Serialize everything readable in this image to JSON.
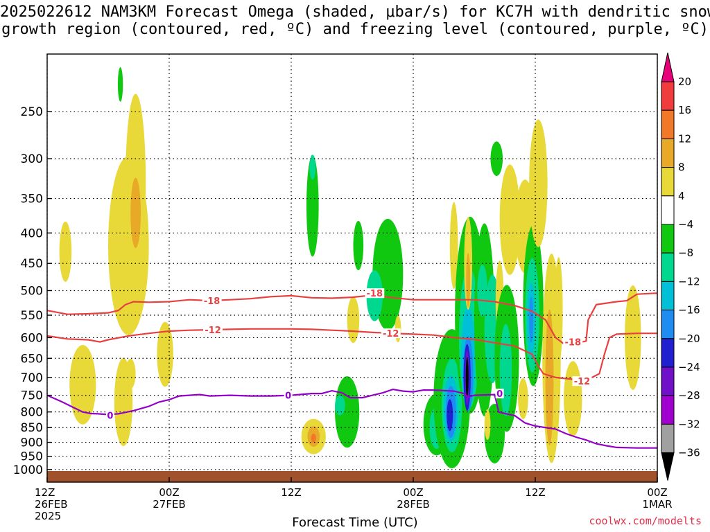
{
  "title_line1": "2025022612 NAM3KM Forecast Omega (shaded, μbar/s) for KC7H with dendritic snow",
  "title_line2": "growth region (contoured, red, ºC) and freezing level (contoured, purple, ºC)",
  "credit": "coolwx.com/modelts",
  "chart_data": {
    "type": "heatmap",
    "xlabel": "Forecast Time (UTC)",
    "x_range_hours": [
      0,
      60
    ],
    "x_ticks": [
      {
        "hour": 0,
        "lines": [
          "12Z",
          "26FEB",
          "2025"
        ]
      },
      {
        "hour": 12,
        "lines": [
          "00Z",
          "27FEB"
        ]
      },
      {
        "hour": 24,
        "lines": [
          "12Z"
        ]
      },
      {
        "hour": 36,
        "lines": [
          "00Z",
          "28FEB"
        ]
      },
      {
        "hour": 48,
        "lines": [
          "12Z"
        ]
      },
      {
        "hour": 60,
        "lines": [
          "00Z",
          "1MAR"
        ]
      }
    ],
    "y_axis": "pressure (hPa), log scale, reversed",
    "y_range": [
      1050,
      200
    ],
    "y_ticks": [
      250,
      300,
      350,
      400,
      450,
      500,
      550,
      600,
      650,
      700,
      750,
      800,
      850,
      900,
      950,
      1000
    ],
    "grid": true,
    "colorbar": {
      "labels": [
        "20",
        "16",
        "12",
        "8",
        "4",
        "−4",
        "−8",
        "−12",
        "−16",
        "−20",
        "−24",
        "−28",
        "−32",
        "−36"
      ],
      "colors": [
        "#e8007a",
        "#f03c3c",
        "#f07828",
        "#e8a828",
        "#e8d838",
        "#ffffff",
        "#10c810",
        "#00d890",
        "#00c0d8",
        "#1e8cf0",
        "#2020d0",
        "#7010c8",
        "#a000d0",
        "#a0a0a0",
        "#000000"
      ]
    },
    "omega_regions": [
      {
        "t": 8.7,
        "p": 330,
        "dt": 1.0,
        "dp": 110,
        "level": 4
      },
      {
        "t": 8.0,
        "p": 420,
        "dt": 2.0,
        "dp": 140,
        "level": 4
      },
      {
        "t": 8.7,
        "p": 370,
        "dt": 0.5,
        "dp": 50,
        "level": 8
      },
      {
        "t": 1.8,
        "p": 430,
        "dt": 0.6,
        "dp": 50,
        "level": 4
      },
      {
        "t": 3.5,
        "p": 720,
        "dt": 1.3,
        "dp": 110,
        "level": 4
      },
      {
        "t": 7.5,
        "p": 770,
        "dt": 0.9,
        "dp": 130,
        "level": 4
      },
      {
        "t": 8.2,
        "p": 690,
        "dt": 0.5,
        "dp": 40,
        "level": 4
      },
      {
        "t": 11.6,
        "p": 640,
        "dt": 0.8,
        "dp": 80,
        "level": 4
      },
      {
        "t": 7.2,
        "p": 225,
        "dt": 0.25,
        "dp": 15,
        "level": -4
      },
      {
        "t": 26.1,
        "p": 360,
        "dt": 0.6,
        "dp": 70,
        "level": -4
      },
      {
        "t": 26.1,
        "p": 310,
        "dt": 0.3,
        "dp": 15,
        "level": -8
      },
      {
        "t": 30.6,
        "p": 420,
        "dt": 0.5,
        "dp": 40,
        "level": -4
      },
      {
        "t": 33.5,
        "p": 470,
        "dt": 1.5,
        "dp": 100,
        "level": -4
      },
      {
        "t": 32.2,
        "p": 510,
        "dt": 0.8,
        "dp": 50,
        "level": -8
      },
      {
        "t": 30.1,
        "p": 560,
        "dt": 0.6,
        "dp": 50,
        "level": 4
      },
      {
        "t": 26.2,
        "p": 880,
        "dt": 1.2,
        "dp": 60,
        "level": 4
      },
      {
        "t": 26.2,
        "p": 880,
        "dt": 0.6,
        "dp": 35,
        "level": 8
      },
      {
        "t": 26.2,
        "p": 885,
        "dt": 0.25,
        "dp": 15,
        "level": 12
      },
      {
        "t": 29.5,
        "p": 800,
        "dt": 1.2,
        "dp": 110,
        "level": -4
      },
      {
        "t": 28.8,
        "p": 780,
        "dt": 0.5,
        "dp": 30,
        "level": -8
      },
      {
        "t": 34.5,
        "p": 580,
        "dt": 0.3,
        "dp": 30,
        "level": 4
      },
      {
        "t": 38.3,
        "p": 840,
        "dt": 1.3,
        "dp": 100,
        "level": -4
      },
      {
        "t": 38.3,
        "p": 850,
        "dt": 0.7,
        "dp": 70,
        "level": -8
      },
      {
        "t": 39.8,
        "p": 760,
        "dt": 1.8,
        "dp": 200,
        "level": -4
      },
      {
        "t": 39.8,
        "p": 780,
        "dt": 1.0,
        "dp": 140,
        "level": -8
      },
      {
        "t": 39.7,
        "p": 790,
        "dt": 0.7,
        "dp": 100,
        "level": -12
      },
      {
        "t": 39.7,
        "p": 800,
        "dt": 0.5,
        "dp": 80,
        "level": -16
      },
      {
        "t": 39.6,
        "p": 810,
        "dt": 0.3,
        "dp": 50,
        "level": -20
      },
      {
        "t": 40.0,
        "p": 420,
        "dt": 0.4,
        "dp": 70,
        "level": 4
      },
      {
        "t": 41.6,
        "p": 550,
        "dt": 1.5,
        "dp": 200,
        "level": -4
      },
      {
        "t": 41.5,
        "p": 600,
        "dt": 1.0,
        "dp": 160,
        "level": -8
      },
      {
        "t": 41.4,
        "p": 650,
        "dt": 0.7,
        "dp": 130,
        "level": -12
      },
      {
        "t": 41.4,
        "p": 690,
        "dt": 0.5,
        "dp": 100,
        "level": -16
      },
      {
        "t": 41.3,
        "p": 700,
        "dt": 0.35,
        "dp": 90,
        "level": -20
      },
      {
        "t": 41.3,
        "p": 700,
        "dt": 0.2,
        "dp": 75,
        "level": -24
      },
      {
        "t": 41.3,
        "p": 700,
        "dt": 0.1,
        "dp": 55,
        "level": -32
      },
      {
        "t": 41.4,
        "p": 450,
        "dt": 0.4,
        "dp": 80,
        "level": 4
      },
      {
        "t": 41.4,
        "p": 480,
        "dt": 0.2,
        "dp": 50,
        "level": 8
      },
      {
        "t": 43.0,
        "p": 560,
        "dt": 1.0,
        "dp": 200,
        "level": -4
      },
      {
        "t": 42.8,
        "p": 500,
        "dt": 0.5,
        "dp": 50,
        "level": -8
      },
      {
        "t": 43.8,
        "p": 580,
        "dt": 0.8,
        "dp": 120,
        "level": -8
      },
      {
        "t": 44.5,
        "p": 520,
        "dt": 0.4,
        "dp": 80,
        "level": 4
      },
      {
        "t": 44.2,
        "p": 300,
        "dt": 0.6,
        "dp": 20,
        "level": -4
      },
      {
        "t": 45.2,
        "p": 650,
        "dt": 1.2,
        "dp": 180,
        "level": -4
      },
      {
        "t": 45.1,
        "p": 680,
        "dt": 0.6,
        "dp": 120,
        "level": -8
      },
      {
        "t": 44.0,
        "p": 870,
        "dt": 1.0,
        "dp": 100,
        "level": -4
      },
      {
        "t": 43.3,
        "p": 840,
        "dt": 0.3,
        "dp": 50,
        "level": 4
      },
      {
        "t": 45.5,
        "p": 380,
        "dt": 1.0,
        "dp": 80,
        "level": 4
      },
      {
        "t": 46.8,
        "p": 760,
        "dt": 0.5,
        "dp": 60,
        "level": 4
      },
      {
        "t": 47.0,
        "p": 390,
        "dt": 1.0,
        "dp": 70,
        "level": 4
      },
      {
        "t": 47.8,
        "p": 530,
        "dt": 1.0,
        "dp": 160,
        "level": -4
      },
      {
        "t": 47.7,
        "p": 550,
        "dt": 0.7,
        "dp": 120,
        "level": -8
      },
      {
        "t": 47.6,
        "p": 560,
        "dt": 0.4,
        "dp": 80,
        "level": -12
      },
      {
        "t": 47.6,
        "p": 560,
        "dt": 0.2,
        "dp": 50,
        "level": -16
      },
      {
        "t": 48.3,
        "p": 330,
        "dt": 0.9,
        "dp": 80,
        "level": 4
      },
      {
        "t": 49.6,
        "p": 650,
        "dt": 0.9,
        "dp": 250,
        "level": 4
      },
      {
        "t": 49.4,
        "p": 700,
        "dt": 0.4,
        "dp": 180,
        "level": 8
      },
      {
        "t": 50.3,
        "p": 540,
        "dt": 0.4,
        "dp": 110,
        "level": 4
      },
      {
        "t": 51.7,
        "p": 760,
        "dt": 0.9,
        "dp": 110,
        "level": 4
      },
      {
        "t": 51.4,
        "p": 700,
        "dt": 0.3,
        "dp": 25,
        "level": 4
      },
      {
        "t": 57.6,
        "p": 600,
        "dt": 0.8,
        "dp": 120,
        "level": 4
      }
    ],
    "contours": [
      {
        "color": "#e84040",
        "labels": [
          {
            "t": 16.2,
            "p": 520,
            "text": "-18"
          },
          {
            "t": 32.2,
            "p": 505,
            "text": "-18"
          },
          {
            "t": 51.7,
            "p": 610,
            "text": "-18"
          }
        ],
        "points": [
          [
            0,
            540
          ],
          [
            2,
            548
          ],
          [
            4,
            547
          ],
          [
            6,
            545
          ],
          [
            7,
            540
          ],
          [
            7.7,
            528
          ],
          [
            8.5,
            522
          ],
          [
            10,
            523
          ],
          [
            12,
            522
          ],
          [
            14,
            518
          ],
          [
            16,
            520
          ],
          [
            18,
            518
          ],
          [
            20,
            516
          ],
          [
            22,
            512
          ],
          [
            24,
            510
          ],
          [
            26,
            514
          ],
          [
            28,
            515
          ],
          [
            30,
            513
          ],
          [
            32,
            509
          ],
          [
            34,
            514
          ],
          [
            36,
            518
          ],
          [
            38,
            518
          ],
          [
            40,
            518
          ],
          [
            42,
            518
          ],
          [
            44,
            522
          ],
          [
            46,
            530
          ],
          [
            47.7,
            542
          ],
          [
            49,
            560
          ],
          [
            50,
            600
          ],
          [
            51,
            618
          ],
          [
            53,
            608
          ],
          [
            53.2,
            560
          ],
          [
            54,
            528
          ],
          [
            56,
            522
          ],
          [
            57,
            520
          ],
          [
            58,
            507
          ],
          [
            60,
            505
          ]
        ]
      },
      {
        "color": "#e84040",
        "labels": [
          {
            "t": 16.3,
            "p": 582,
            "text": "-12"
          },
          {
            "t": 33.8,
            "p": 590,
            "text": "-12"
          },
          {
            "t": 52.6,
            "p": 710,
            "text": "-12"
          }
        ],
        "points": [
          [
            0,
            596
          ],
          [
            2,
            603
          ],
          [
            4,
            605
          ],
          [
            5.2,
            610
          ],
          [
            6,
            605
          ],
          [
            8,
            596
          ],
          [
            10,
            590
          ],
          [
            12,
            585
          ],
          [
            14,
            583
          ],
          [
            16,
            582
          ],
          [
            18,
            581
          ],
          [
            20,
            580
          ],
          [
            22,
            580
          ],
          [
            24,
            580
          ],
          [
            26,
            581
          ],
          [
            28,
            583
          ],
          [
            30,
            585
          ],
          [
            32,
            588
          ],
          [
            34,
            590
          ],
          [
            36,
            592
          ],
          [
            38,
            594
          ],
          [
            40,
            600
          ],
          [
            42,
            604
          ],
          [
            44,
            612
          ],
          [
            46,
            620
          ],
          [
            47.7,
            640
          ],
          [
            48.3,
            670
          ],
          [
            48.8,
            690
          ],
          [
            50,
            700
          ],
          [
            51,
            703
          ],
          [
            53,
            708
          ],
          [
            54.3,
            690
          ],
          [
            54.8,
            640
          ],
          [
            55.3,
            600
          ],
          [
            56,
            592
          ],
          [
            58,
            590
          ],
          [
            60,
            590
          ]
        ]
      },
      {
        "color": "#9400c8",
        "labels": [
          {
            "t": 6.2,
            "p": 810,
            "text": "0"
          },
          {
            "t": 23.7,
            "p": 750,
            "text": "0"
          },
          {
            "t": 44.5,
            "p": 745,
            "text": "0"
          }
        ],
        "points": [
          [
            0,
            750
          ],
          [
            1.5,
            770
          ],
          [
            2.5,
            785
          ],
          [
            3.5,
            800
          ],
          [
            4.3,
            805
          ],
          [
            5,
            806
          ],
          [
            6,
            808
          ],
          [
            7,
            806
          ],
          [
            8.5,
            796
          ],
          [
            10,
            783
          ],
          [
            11,
            770
          ],
          [
            12,
            763
          ],
          [
            13,
            752
          ],
          [
            14,
            750
          ],
          [
            15,
            748
          ],
          [
            16,
            752
          ],
          [
            18,
            750
          ],
          [
            20,
            752
          ],
          [
            22,
            752
          ],
          [
            24,
            750
          ],
          [
            26,
            745
          ],
          [
            27,
            745
          ],
          [
            28,
            737
          ],
          [
            29,
            743
          ],
          [
            29.8,
            757
          ],
          [
            31,
            757
          ],
          [
            32,
            750
          ],
          [
            33,
            743
          ],
          [
            34,
            733
          ],
          [
            35,
            738
          ],
          [
            36,
            740
          ],
          [
            37,
            735
          ],
          [
            38,
            735
          ],
          [
            40,
            738
          ],
          [
            41,
            745
          ],
          [
            41.4,
            755
          ],
          [
            42,
            750
          ],
          [
            44,
            748
          ],
          [
            44.1,
            760
          ],
          [
            44.4,
            800
          ],
          [
            45,
            805
          ],
          [
            45.5,
            808
          ],
          [
            46,
            812
          ],
          [
            47,
            835
          ],
          [
            48,
            845
          ],
          [
            50,
            855
          ],
          [
            51,
            870
          ],
          [
            52,
            882
          ],
          [
            53,
            892
          ],
          [
            54,
            905
          ],
          [
            55,
            912
          ],
          [
            56,
            918
          ],
          [
            58,
            920
          ],
          [
            60,
            920
          ]
        ]
      }
    ]
  }
}
